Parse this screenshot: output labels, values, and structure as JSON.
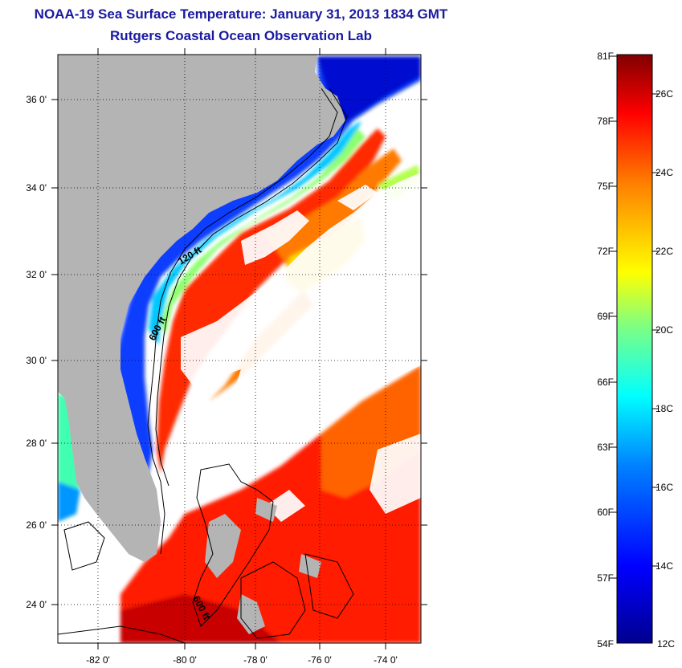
{
  "title_line1": "NOAA-19 Sea Surface Temperature:  January 31, 2013 1834 GMT",
  "title_line2": "Rutgers Coastal Ocean Observation Lab",
  "map": {
    "lon_labels": [
      "-82 0'",
      "-80 0'",
      "-78 0'",
      "-76 0'",
      "-74 0'"
    ],
    "lat_labels": [
      "36 0'",
      "34 0'",
      "32 0'",
      "30 0'",
      "28 0'",
      "26 0'",
      "24 0'"
    ],
    "contour_labels": [
      "120 ft",
      "600 ft",
      "600 ft"
    ],
    "colors": {
      "land": "#b4b4b4",
      "no_data": "#ffffff",
      "frame": "#000000"
    }
  },
  "colorbar": {
    "fahrenheit_labels": [
      "81F",
      "78F",
      "75F",
      "72F",
      "69F",
      "66F",
      "63F",
      "60F",
      "57F",
      "54F"
    ],
    "celsius_labels": [
      "26C",
      "24C",
      "22C",
      "20C",
      "18C",
      "16C",
      "14C",
      "12C"
    ],
    "colors": [
      "#00008f",
      "#0000ff",
      "#0080ff",
      "#00ffff",
      "#80ff80",
      "#ffff00",
      "#ff8000",
      "#ff0000",
      "#800000"
    ]
  }
}
